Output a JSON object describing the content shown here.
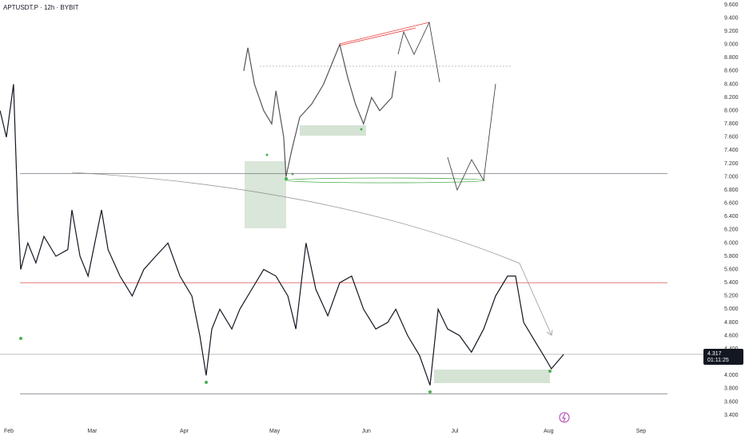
{
  "chart_data": {
    "type": "line",
    "title": "APTUSDT.P · 12h · BYBIT",
    "xlim": [
      -1.34,
      241.3
    ],
    "xticks": [
      {
        "value": 0,
        "label": "Feb"
      },
      {
        "value": 28,
        "label": "Mar"
      },
      {
        "value": 59,
        "label": "Apr"
      },
      {
        "value": 89,
        "label": "May"
      },
      {
        "value": 120,
        "label": "Jun"
      },
      {
        "value": 150,
        "label": "Jul"
      },
      {
        "value": 181,
        "label": "Aug"
      },
      {
        "value": 212,
        "label": "Sep"
      }
    ],
    "ylim": [
      3.4,
      9.6
    ],
    "yticks": [
      {
        "value": 3.4,
        "label": "3.400"
      },
      {
        "value": 3.6,
        "label": "3.600"
      },
      {
        "value": 3.8,
        "label": "3.800"
      },
      {
        "value": 4.0,
        "label": "4.000"
      },
      {
        "value": 4.2,
        "label": "4.200"
      },
      {
        "value": 4.4,
        "label": "4.400"
      },
      {
        "value": 4.6,
        "label": "4.600"
      },
      {
        "value": 4.8,
        "label": "4.800"
      },
      {
        "value": 5.0,
        "label": "5.000"
      },
      {
        "value": 5.2,
        "label": "5.200"
      },
      {
        "value": 5.4,
        "label": "5.400"
      },
      {
        "value": 5.6,
        "label": "5.600"
      },
      {
        "value": 5.8,
        "label": "5.800"
      },
      {
        "value": 6.0,
        "label": "6.000"
      },
      {
        "value": 6.2,
        "label": "6.200"
      },
      {
        "value": 6.4,
        "label": "6.400"
      },
      {
        "value": 6.6,
        "label": "6.600"
      },
      {
        "value": 6.8,
        "label": "6.800"
      },
      {
        "value": 7.0,
        "label": "7.000"
      },
      {
        "value": 7.2,
        "label": "7.200"
      },
      {
        "value": 7.4,
        "label": "7.400"
      },
      {
        "value": 7.6,
        "label": "7.600"
      },
      {
        "value": 7.8,
        "label": "7.800"
      },
      {
        "value": 8.0,
        "label": "8.000"
      },
      {
        "value": 8.2,
        "label": "8.200"
      },
      {
        "value": 8.4,
        "label": "8.400"
      },
      {
        "value": 8.6,
        "label": "8.600"
      },
      {
        "value": 8.8,
        "label": "8.800"
      },
      {
        "value": 9.0,
        "label": "9.000"
      },
      {
        "value": 9.2,
        "label": "9.200"
      },
      {
        "value": 9.4,
        "label": "9.400"
      },
      {
        "value": 9.6,
        "label": "9.600"
      }
    ],
    "series": [
      {
        "color": "#131722",
        "x": [
          -1.3,
          0.8,
          3.2,
          4.6,
          5.6,
          8,
          10.7,
          13.4,
          17.4,
          21.4,
          22.8,
          25.5,
          28.2,
          32.7,
          34.9,
          38.9,
          43,
          46.9,
          50.9,
          55,
          59,
          63,
          65.7,
          67.8,
          69.7,
          72.4,
          76.4,
          79.1,
          83.1,
          87.1,
          91.2,
          95.2,
          97.9,
          101.3,
          104.6,
          108.6,
          112.6,
          116.6,
          120.6,
          124.7,
          128.7,
          131.4,
          135.4,
          139.4,
          142.9,
          145.6,
          148.8,
          152.8,
          156.8,
          160.9,
          164.9,
          168.9,
          171.6,
          174.3,
          178.3,
          181,
          183.6,
          187.7
        ],
        "values": [
          8.0,
          7.6,
          8.4,
          6.5,
          5.6,
          6.0,
          5.7,
          6.1,
          5.8,
          5.9,
          6.5,
          5.8,
          5.5,
          6.5,
          5.9,
          5.5,
          5.2,
          5.6,
          5.8,
          6.0,
          5.5,
          5.2,
          4.6,
          4.0,
          4.7,
          5.0,
          4.7,
          5.0,
          5.3,
          5.6,
          5.5,
          5.2,
          4.7,
          6.0,
          5.3,
          4.9,
          5.4,
          5.5,
          5.0,
          4.7,
          4.8,
          5.0,
          4.6,
          4.3,
          3.85,
          5.0,
          4.7,
          4.6,
          4.35,
          4.7,
          5.2,
          5.5,
          5.5,
          4.8,
          4.5,
          4.3,
          4.1,
          4.317
        ]
      },
      {
        "color": "#555555",
        "x": [
          80.4,
          81.8,
          84,
          87.1,
          89.8,
          91.2,
          93.8,
          94.6,
          96.5,
          99.2,
          103.2,
          107.2,
          109.9,
          112.6,
          115.3,
          117.9,
          120.6,
          123.3,
          126,
          130.1,
          131.4
        ],
        "values": [
          8.6,
          8.95,
          8.4,
          8.0,
          7.8,
          8.3,
          7.6,
          7.0,
          7.4,
          7.9,
          8.1,
          8.4,
          8.7,
          9.0,
          8.5,
          8.1,
          7.8,
          8.2,
          8.0,
          8.2,
          8.6
        ]
      }
    ],
    "levels": [
      {
        "value": 7.05,
        "color": "#787b86"
      },
      {
        "value": 5.4,
        "color": "#e06666"
      },
      {
        "value": 3.72,
        "color": "#787b86"
      }
    ],
    "last_price": {
      "value": 4.317,
      "label": "4.317",
      "countdown": "01:11:25"
    }
  }
}
